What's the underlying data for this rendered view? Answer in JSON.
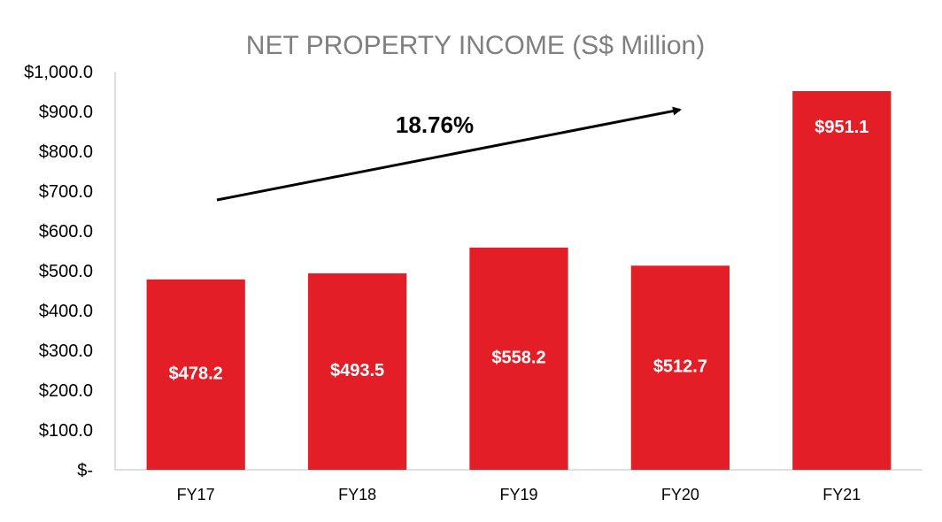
{
  "chart_data": {
    "type": "bar",
    "title": "NET PROPERTY INCOME (S$ Million)",
    "categories": [
      "FY17",
      "FY18",
      "FY19",
      "FY20",
      "FY21"
    ],
    "values": [
      478.2,
      493.5,
      558.2,
      512.7,
      951.1
    ],
    "data_labels": [
      "$478.2",
      "$493.5",
      "$558.2",
      "$512.7",
      "$951.1"
    ],
    "y_ticks": [
      {
        "value": 0,
        "label": "$-"
      },
      {
        "value": 100,
        "label": "$100.0"
      },
      {
        "value": 200,
        "label": "$200.0"
      },
      {
        "value": 300,
        "label": "$300.0"
      },
      {
        "value": 400,
        "label": "$400.0"
      },
      {
        "value": 500,
        "label": "$500.0"
      },
      {
        "value": 600,
        "label": "$600.0"
      },
      {
        "value": 700,
        "label": "$700.0"
      },
      {
        "value": 800,
        "label": "$800.0"
      },
      {
        "value": 900,
        "label": "$900.0"
      },
      {
        "value": 1000,
        "label": "$1,000.0"
      }
    ],
    "ylim": [
      0,
      1000
    ],
    "xlabel": "",
    "ylabel": "",
    "grid": false,
    "legend": "none",
    "annotation": {
      "text": "18.76%",
      "arrow": "up-right"
    },
    "colors": {
      "bar": "#e41e26",
      "axis": "#bfbfbf",
      "title": "#7f7f7f",
      "bar_label": "#ffffff"
    }
  }
}
